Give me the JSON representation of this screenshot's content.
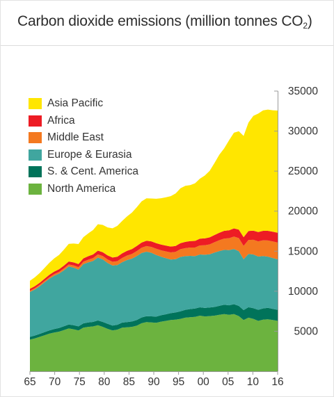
{
  "header": {
    "title_main": "Carbon dioxide emissions (million tonnes CO",
    "title_sub": "2",
    "title_close": ")"
  },
  "chart_data": {
    "type": "area",
    "stacked": true,
    "title": "Carbon dioxide emissions (million tonnes CO2)",
    "x_tick_labels": [
      "65",
      "70",
      "75",
      "80",
      "85",
      "90",
      "95",
      "00",
      "05",
      "10",
      "16"
    ],
    "y_tick_labels": [
      "5000",
      "10000",
      "15000",
      "20000",
      "25000",
      "30000",
      "35000"
    ],
    "y_ticks": [
      5000,
      10000,
      15000,
      20000,
      25000,
      30000,
      35000
    ],
    "ylim": [
      0,
      35000
    ],
    "xlim": [
      1965,
      2016
    ],
    "y_axis_side": "right",
    "legend_position": "top-left",
    "x": [
      1965,
      1966,
      1967,
      1968,
      1969,
      1970,
      1971,
      1972,
      1973,
      1974,
      1975,
      1976,
      1977,
      1978,
      1979,
      1980,
      1981,
      1982,
      1983,
      1984,
      1985,
      1986,
      1987,
      1988,
      1989,
      1990,
      1991,
      1992,
      1993,
      1994,
      1995,
      1996,
      1997,
      1998,
      1999,
      2000,
      2001,
      2002,
      2003,
      2004,
      2005,
      2006,
      2007,
      2008,
      2009,
      2010,
      2011,
      2012,
      2013,
      2014,
      2015,
      2016
    ],
    "series": [
      {
        "name": "North America",
        "color": "#6cb33f",
        "values": [
          3950,
          4100,
          4300,
          4500,
          4700,
          4850,
          4950,
          5150,
          5350,
          5250,
          5100,
          5450,
          5550,
          5600,
          5750,
          5550,
          5300,
          5100,
          5200,
          5450,
          5500,
          5550,
          5700,
          6000,
          6150,
          6100,
          6050,
          6200,
          6300,
          6400,
          6450,
          6550,
          6700,
          6750,
          6800,
          6950,
          6850,
          6900,
          6950,
          7050,
          7150,
          7050,
          7150,
          6900,
          6400,
          6700,
          6550,
          6300,
          6450,
          6500,
          6400,
          6300
        ]
      },
      {
        "name": "S. & Cent. America",
        "color": "#00735a",
        "values": [
          350,
          360,
          370,
          390,
          410,
          430,
          450,
          470,
          490,
          500,
          510,
          530,
          550,
          570,
          600,
          620,
          620,
          610,
          610,
          630,
          650,
          670,
          700,
          720,
          740,
          760,
          780,
          800,
          820,
          860,
          900,
          940,
          980,
          1020,
          1030,
          1040,
          1060,
          1070,
          1080,
          1120,
          1160,
          1190,
          1230,
          1260,
          1240,
          1300,
          1340,
          1380,
          1400,
          1420,
          1400,
          1380
        ]
      },
      {
        "name": "Europe & Eurasia",
        "color": "#40a69f",
        "values": [
          5600,
          5750,
          5950,
          6200,
          6450,
          6650,
          6800,
          7000,
          7250,
          7200,
          7100,
          7400,
          7500,
          7600,
          7850,
          7800,
          7600,
          7500,
          7450,
          7550,
          7750,
          7850,
          8000,
          8050,
          8050,
          7950,
          7700,
          7300,
          7000,
          6700,
          6650,
          6800,
          6700,
          6650,
          6550,
          6600,
          6650,
          6650,
          6800,
          6850,
          6850,
          6900,
          6900,
          6850,
          6350,
          6650,
          6700,
          6650,
          6550,
          6400,
          6350,
          6300
        ]
      },
      {
        "name": "Middle East",
        "color": "#f47920",
        "values": [
          150,
          160,
          170,
          180,
          190,
          200,
          210,
          230,
          250,
          270,
          290,
          310,
          340,
          370,
          400,
          420,
          440,
          470,
          500,
          530,
          560,
          590,
          620,
          660,
          700,
          730,
          770,
          810,
          850,
          890,
          920,
          960,
          1000,
          1040,
          1080,
          1130,
          1180,
          1230,
          1290,
          1350,
          1420,
          1480,
          1550,
          1620,
          1680,
          1760,
          1830,
          1900,
          1960,
          2020,
          2070,
          2100
        ]
      },
      {
        "name": "Africa",
        "color": "#ed1c24",
        "values": [
          250,
          260,
          270,
          280,
          300,
          320,
          330,
          350,
          370,
          380,
          390,
          410,
          430,
          450,
          470,
          490,
          510,
          530,
          550,
          570,
          590,
          610,
          630,
          650,
          670,
          690,
          700,
          710,
          720,
          730,
          740,
          760,
          780,
          800,
          820,
          840,
          860,
          880,
          900,
          930,
          960,
          990,
          1020,
          1060,
          1080,
          1110,
          1140,
          1160,
          1180,
          1200,
          1210,
          1220
        ]
      },
      {
        "name": "Asia Pacific",
        "color": "#ffe600",
        "values": [
          1000,
          1100,
          1200,
          1350,
          1500,
          1650,
          1800,
          2000,
          2200,
          2350,
          2500,
          2650,
          2850,
          3050,
          3300,
          3400,
          3500,
          3650,
          3850,
          4050,
          4300,
          4550,
          4850,
          5150,
          5300,
          5350,
          5550,
          5800,
          6050,
          6300,
          6550,
          6850,
          7000,
          7000,
          7200,
          7500,
          7850,
          8300,
          9000,
          9750,
          10300,
          11250,
          11950,
          12300,
          12650,
          13550,
          14350,
          14800,
          15050,
          15150,
          15170,
          15270
        ]
      }
    ]
  }
}
